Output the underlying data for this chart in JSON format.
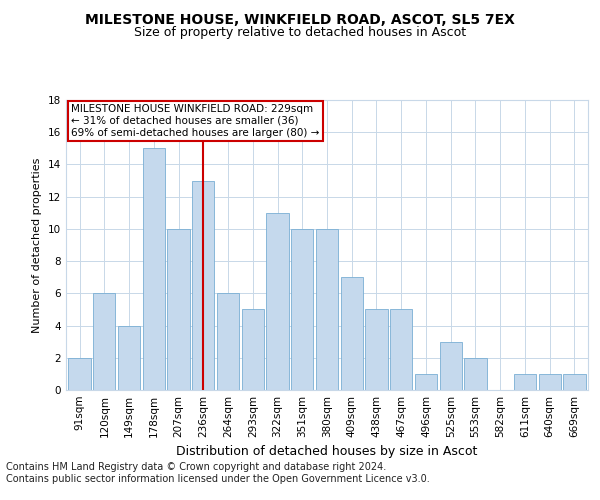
{
  "title": "MILESTONE HOUSE, WINKFIELD ROAD, ASCOT, SL5 7EX",
  "subtitle": "Size of property relative to detached houses in Ascot",
  "xlabel": "Distribution of detached houses by size in Ascot",
  "ylabel": "Number of detached properties",
  "categories": [
    "91sqm",
    "120sqm",
    "149sqm",
    "178sqm",
    "207sqm",
    "236sqm",
    "264sqm",
    "293sqm",
    "322sqm",
    "351sqm",
    "380sqm",
    "409sqm",
    "438sqm",
    "467sqm",
    "496sqm",
    "525sqm",
    "553sqm",
    "582sqm",
    "611sqm",
    "640sqm",
    "669sqm"
  ],
  "values": [
    2,
    6,
    4,
    15,
    10,
    13,
    6,
    5,
    11,
    10,
    10,
    7,
    5,
    5,
    1,
    3,
    2,
    0,
    1,
    1,
    1
  ],
  "bar_color": "#c5d9ed",
  "bar_edgecolor": "#7aafd4",
  "highlight_index": 5,
  "highlight_line_color": "#cc0000",
  "annotation_text": "MILESTONE HOUSE WINKFIELD ROAD: 229sqm\n← 31% of detached houses are smaller (36)\n69% of semi-detached houses are larger (80) →",
  "annotation_box_edgecolor": "#cc0000",
  "ylim": [
    0,
    18
  ],
  "yticks": [
    0,
    2,
    4,
    6,
    8,
    10,
    12,
    14,
    16,
    18
  ],
  "footnote_line1": "Contains HM Land Registry data © Crown copyright and database right 2024.",
  "footnote_line2": "Contains public sector information licensed under the Open Government Licence v3.0.",
  "title_fontsize": 10,
  "subtitle_fontsize": 9,
  "xlabel_fontsize": 9,
  "ylabel_fontsize": 8,
  "tick_fontsize": 7.5,
  "annotation_fontsize": 7.5,
  "footnote_fontsize": 7,
  "background_color": "#ffffff",
  "grid_color": "#c8d8e8"
}
